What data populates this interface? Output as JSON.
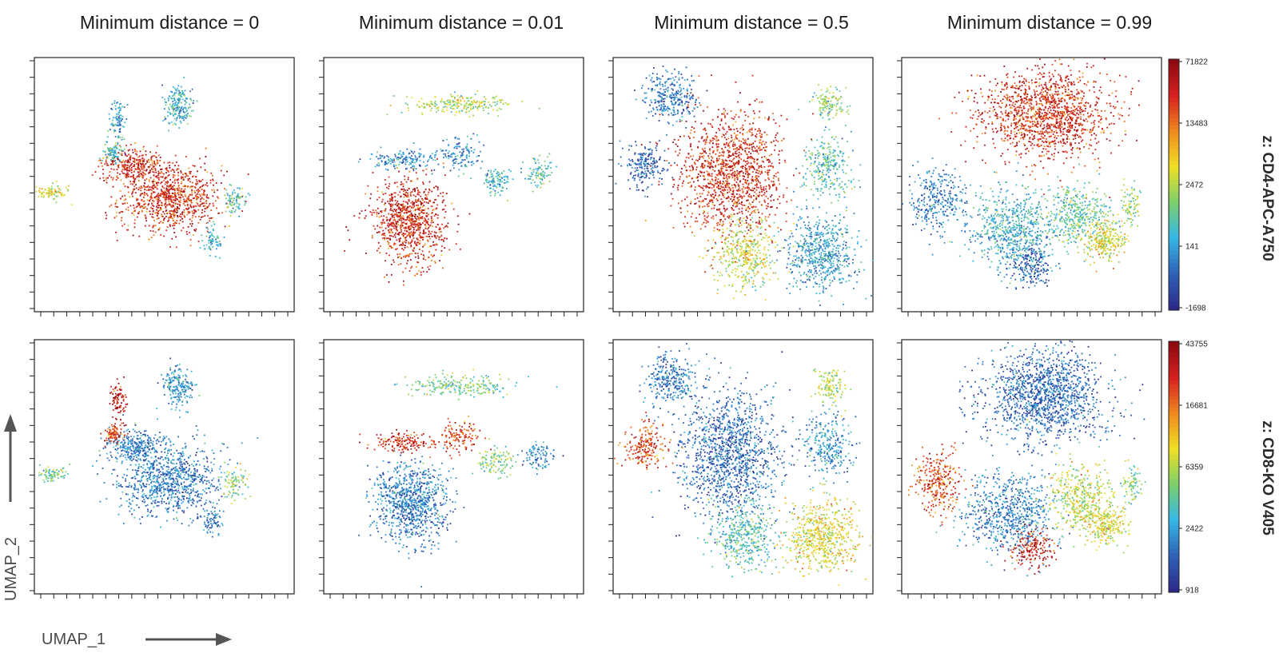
{
  "colors": {
    "colormap": [
      "#2b2a8c",
      "#2f63b8",
      "#35b8e6",
      "#7ccf6a",
      "#f0e024",
      "#f08a1e",
      "#d72020",
      "#8c0a10"
    ],
    "axis": "#222222",
    "arrow": "#555555"
  },
  "chart_data": {
    "type": "scatter",
    "columns": [
      "Minimum distance = 0",
      "Minimum distance = 0.01",
      "Minimum distance = 0.5",
      "Minimum distance = 0.99"
    ],
    "rows": [
      {
        "z_label": "z: CD4-APC-A750",
        "colorbar_ticks": [
          "71822",
          "13483",
          "2472",
          "141",
          "-1698"
        ],
        "panels": [
          {
            "clusters": [
              {
                "x": 0.52,
                "y": 0.45,
                "sx": 0.1,
                "sy": 0.07,
                "n": 900,
                "v": 0.85
              },
              {
                "x": 0.38,
                "y": 0.58,
                "sx": 0.06,
                "sy": 0.03,
                "n": 300,
                "v": 0.85
              },
              {
                "x": 0.55,
                "y": 0.82,
                "sx": 0.03,
                "sy": 0.04,
                "n": 200,
                "v": 0.28
              },
              {
                "x": 0.32,
                "y": 0.76,
                "sx": 0.015,
                "sy": 0.04,
                "n": 90,
                "v": 0.25
              },
              {
                "x": 0.3,
                "y": 0.63,
                "sx": 0.02,
                "sy": 0.02,
                "n": 90,
                "v": 0.3
              },
              {
                "x": 0.07,
                "y": 0.47,
                "sx": 0.03,
                "sy": 0.015,
                "n": 80,
                "v": 0.55
              },
              {
                "x": 0.77,
                "y": 0.44,
                "sx": 0.025,
                "sy": 0.03,
                "n": 80,
                "v": 0.35
              },
              {
                "x": 0.68,
                "y": 0.28,
                "sx": 0.02,
                "sy": 0.03,
                "n": 70,
                "v": 0.3
              }
            ]
          },
          {
            "clusters": [
              {
                "x": 0.33,
                "y": 0.36,
                "sx": 0.07,
                "sy": 0.08,
                "n": 900,
                "v": 0.85
              },
              {
                "x": 0.52,
                "y": 0.82,
                "sx": 0.1,
                "sy": 0.02,
                "n": 220,
                "v": 0.5
              },
              {
                "x": 0.3,
                "y": 0.6,
                "sx": 0.06,
                "sy": 0.02,
                "n": 160,
                "v": 0.22
              },
              {
                "x": 0.52,
                "y": 0.62,
                "sx": 0.04,
                "sy": 0.03,
                "n": 130,
                "v": 0.22
              },
              {
                "x": 0.66,
                "y": 0.52,
                "sx": 0.03,
                "sy": 0.025,
                "n": 110,
                "v": 0.3
              },
              {
                "x": 0.83,
                "y": 0.55,
                "sx": 0.03,
                "sy": 0.03,
                "n": 90,
                "v": 0.35
              }
            ]
          },
          {
            "clusters": [
              {
                "x": 0.45,
                "y": 0.55,
                "sx": 0.1,
                "sy": 0.12,
                "n": 1300,
                "v": 0.85
              },
              {
                "x": 0.8,
                "y": 0.23,
                "sx": 0.07,
                "sy": 0.07,
                "n": 600,
                "v": 0.25
              },
              {
                "x": 0.5,
                "y": 0.23,
                "sx": 0.06,
                "sy": 0.07,
                "n": 400,
                "v": 0.52
              },
              {
                "x": 0.22,
                "y": 0.85,
                "sx": 0.05,
                "sy": 0.05,
                "n": 300,
                "v": 0.18
              },
              {
                "x": 0.12,
                "y": 0.58,
                "sx": 0.04,
                "sy": 0.04,
                "n": 200,
                "v": 0.12
              },
              {
                "x": 0.82,
                "y": 0.58,
                "sx": 0.05,
                "sy": 0.06,
                "n": 280,
                "v": 0.35
              },
              {
                "x": 0.83,
                "y": 0.82,
                "sx": 0.03,
                "sy": 0.03,
                "n": 120,
                "v": 0.45
              }
            ]
          },
          {
            "clusters": [
              {
                "x": 0.55,
                "y": 0.78,
                "sx": 0.12,
                "sy": 0.09,
                "n": 1400,
                "v": 0.85
              },
              {
                "x": 0.42,
                "y": 0.32,
                "sx": 0.09,
                "sy": 0.08,
                "n": 700,
                "v": 0.28
              },
              {
                "x": 0.68,
                "y": 0.38,
                "sx": 0.06,
                "sy": 0.06,
                "n": 400,
                "v": 0.38
              },
              {
                "x": 0.14,
                "y": 0.44,
                "sx": 0.05,
                "sy": 0.06,
                "n": 300,
                "v": 0.18
              },
              {
                "x": 0.78,
                "y": 0.28,
                "sx": 0.04,
                "sy": 0.04,
                "n": 260,
                "v": 0.55
              },
              {
                "x": 0.5,
                "y": 0.18,
                "sx": 0.04,
                "sy": 0.04,
                "n": 180,
                "v": 0.12
              },
              {
                "x": 0.88,
                "y": 0.43,
                "sx": 0.02,
                "sy": 0.04,
                "n": 80,
                "v": 0.45
              }
            ]
          }
        ]
      },
      {
        "z_label": "z: CD8-KO V405",
        "colorbar_ticks": [
          "43755",
          "16681",
          "6359",
          "2422",
          "918"
        ],
        "panels": [
          {
            "clusters": [
              {
                "x": 0.52,
                "y": 0.45,
                "sx": 0.1,
                "sy": 0.07,
                "n": 900,
                "v": 0.18
              },
              {
                "x": 0.38,
                "y": 0.58,
                "sx": 0.06,
                "sy": 0.03,
                "n": 300,
                "v": 0.18
              },
              {
                "x": 0.55,
                "y": 0.82,
                "sx": 0.03,
                "sy": 0.04,
                "n": 200,
                "v": 0.25
              },
              {
                "x": 0.32,
                "y": 0.76,
                "sx": 0.015,
                "sy": 0.04,
                "n": 90,
                "v": 0.9
              },
              {
                "x": 0.3,
                "y": 0.63,
                "sx": 0.02,
                "sy": 0.02,
                "n": 90,
                "v": 0.82
              },
              {
                "x": 0.07,
                "y": 0.47,
                "sx": 0.03,
                "sy": 0.015,
                "n": 80,
                "v": 0.4
              },
              {
                "x": 0.77,
                "y": 0.44,
                "sx": 0.025,
                "sy": 0.03,
                "n": 80,
                "v": 0.45
              },
              {
                "x": 0.68,
                "y": 0.28,
                "sx": 0.02,
                "sy": 0.03,
                "n": 70,
                "v": 0.2
              }
            ]
          },
          {
            "clusters": [
              {
                "x": 0.33,
                "y": 0.36,
                "sx": 0.07,
                "sy": 0.08,
                "n": 900,
                "v": 0.18
              },
              {
                "x": 0.52,
                "y": 0.82,
                "sx": 0.1,
                "sy": 0.02,
                "n": 220,
                "v": 0.4
              },
              {
                "x": 0.3,
                "y": 0.6,
                "sx": 0.06,
                "sy": 0.02,
                "n": 160,
                "v": 0.85
              },
              {
                "x": 0.52,
                "y": 0.62,
                "sx": 0.04,
                "sy": 0.03,
                "n": 130,
                "v": 0.82
              },
              {
                "x": 0.66,
                "y": 0.52,
                "sx": 0.03,
                "sy": 0.025,
                "n": 110,
                "v": 0.42
              },
              {
                "x": 0.83,
                "y": 0.55,
                "sx": 0.03,
                "sy": 0.03,
                "n": 90,
                "v": 0.2
              }
            ]
          },
          {
            "clusters": [
              {
                "x": 0.45,
                "y": 0.55,
                "sx": 0.1,
                "sy": 0.12,
                "n": 1300,
                "v": 0.15
              },
              {
                "x": 0.8,
                "y": 0.23,
                "sx": 0.07,
                "sy": 0.07,
                "n": 600,
                "v": 0.55
              },
              {
                "x": 0.5,
                "y": 0.23,
                "sx": 0.06,
                "sy": 0.07,
                "n": 400,
                "v": 0.35
              },
              {
                "x": 0.22,
                "y": 0.85,
                "sx": 0.05,
                "sy": 0.05,
                "n": 300,
                "v": 0.18
              },
              {
                "x": 0.12,
                "y": 0.58,
                "sx": 0.04,
                "sy": 0.04,
                "n": 200,
                "v": 0.8
              },
              {
                "x": 0.82,
                "y": 0.58,
                "sx": 0.05,
                "sy": 0.06,
                "n": 280,
                "v": 0.22
              },
              {
                "x": 0.83,
                "y": 0.82,
                "sx": 0.03,
                "sy": 0.03,
                "n": 120,
                "v": 0.5
              }
            ]
          },
          {
            "clusters": [
              {
                "x": 0.55,
                "y": 0.78,
                "sx": 0.12,
                "sy": 0.09,
                "n": 1400,
                "v": 0.15
              },
              {
                "x": 0.42,
                "y": 0.32,
                "sx": 0.09,
                "sy": 0.08,
                "n": 700,
                "v": 0.2
              },
              {
                "x": 0.68,
                "y": 0.38,
                "sx": 0.06,
                "sy": 0.06,
                "n": 400,
                "v": 0.5
              },
              {
                "x": 0.14,
                "y": 0.44,
                "sx": 0.05,
                "sy": 0.06,
                "n": 300,
                "v": 0.8
              },
              {
                "x": 0.78,
                "y": 0.28,
                "sx": 0.04,
                "sy": 0.04,
                "n": 260,
                "v": 0.55
              },
              {
                "x": 0.5,
                "y": 0.18,
                "sx": 0.04,
                "sy": 0.04,
                "n": 180,
                "v": 0.88
              },
              {
                "x": 0.88,
                "y": 0.43,
                "sx": 0.02,
                "sy": 0.04,
                "n": 80,
                "v": 0.45
              }
            ]
          }
        ]
      }
    ],
    "xlabel": "UMAP_1",
    "ylabel": "UMAP_2",
    "xlim": [
      0,
      1
    ],
    "ylim": [
      0,
      1
    ],
    "grid": false,
    "legend": "colorbar right of last panel in each row"
  }
}
